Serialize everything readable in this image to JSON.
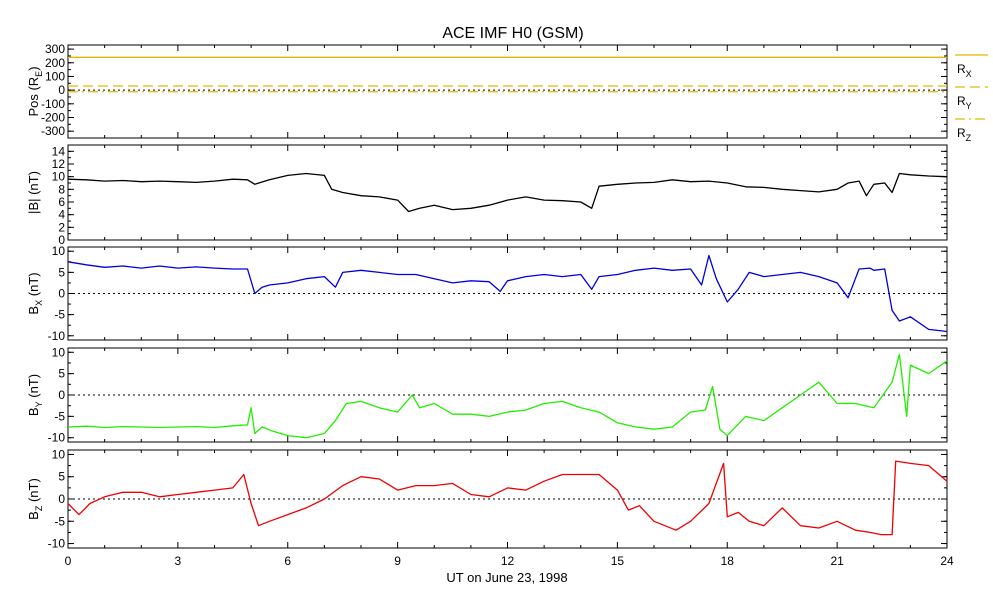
{
  "chart_data": {
    "type": "line",
    "title": "ACE IMF H0 (GSM)",
    "xlabel": "UT on June 23, 1998",
    "xlim": [
      0,
      24
    ],
    "xticks": [
      "0",
      "3",
      "6",
      "9",
      "12",
      "15",
      "18",
      "21",
      "24"
    ],
    "panels": [
      {
        "id": "pos",
        "ylabel": "Pos (R",
        "ylabel_sub": "E",
        "ylabel_end": ")",
        "ylim": [
          -350,
          330
        ],
        "yticks": [
          "300",
          "200",
          "100",
          "0",
          "-100",
          "-200",
          "-300"
        ],
        "color": "#e6b800",
        "series": [
          {
            "name": "R",
            "sub": "X",
            "dash": "solid",
            "value": 240
          },
          {
            "name": "R",
            "sub": "Y",
            "dash": "dashed",
            "value": 30
          },
          {
            "name": "R",
            "sub": "Z",
            "dash": "dashdot",
            "value": -12
          }
        ]
      },
      {
        "id": "b",
        "ylabel": "|B| (nT)",
        "ylim": [
          0,
          15
        ],
        "yticks": [
          "14",
          "12",
          "10",
          "8",
          "6",
          "4",
          "2",
          "0"
        ],
        "color": "#000000",
        "zero_line": false,
        "series": [
          {
            "name": "|B|",
            "x": [
              0,
              0.5,
              1,
              1.5,
              2,
              2.5,
              3,
              3.5,
              4,
              4.5,
              4.9,
              5.1,
              5.5,
              6,
              6.5,
              7,
              7.2,
              7.5,
              8,
              8.5,
              9,
              9.3,
              9.6,
              10,
              10.5,
              11,
              11.5,
              12,
              12.5,
              13,
              13.5,
              14,
              14.3,
              14.5,
              15,
              15.5,
              16,
              16.5,
              17,
              17.5,
              18,
              18.5,
              19,
              19.5,
              20,
              20.5,
              21,
              21.3,
              21.6,
              21.8,
              22,
              22.3,
              22.5,
              22.7,
              23,
              23.5,
              24
            ],
            "y": [
              9.6,
              9.5,
              9.3,
              9.4,
              9.2,
              9.3,
              9.2,
              9.1,
              9.3,
              9.6,
              9.5,
              8.8,
              9.5,
              10.2,
              10.5,
              10.2,
              8,
              7.5,
              7,
              6.8,
              6.3,
              4.5,
              5,
              5.5,
              4.8,
              5,
              5.5,
              6.3,
              6.8,
              6.3,
              6.2,
              6,
              5,
              8.5,
              8.8,
              9,
              9.1,
              9.5,
              9.2,
              9.3,
              9,
              8.4,
              8.3,
              8,
              7.8,
              7.6,
              8,
              9,
              9.3,
              7,
              8.8,
              9,
              7.5,
              10.5,
              10.3,
              10.1,
              10
            ]
          }
        ]
      },
      {
        "id": "bx",
        "ylabel": "B",
        "ylabel_sub": "X",
        "ylabel_end": " (nT)",
        "ylim": [
          -11,
          11
        ],
        "yticks": [
          "10",
          "5",
          "0",
          "-5",
          "-10"
        ],
        "color": "#0000dd",
        "zero_line": true,
        "series": [
          {
            "name": "Bx",
            "x": [
              0,
              0.5,
              1,
              1.5,
              2,
              2.5,
              3,
              3.5,
              4,
              4.5,
              4.9,
              5.1,
              5.3,
              5.5,
              6,
              6.5,
              7,
              7.3,
              7.5,
              8,
              8.5,
              9,
              9.5,
              10,
              10.5,
              11,
              11.5,
              11.8,
              12,
              12.5,
              13,
              13.5,
              14,
              14.3,
              14.5,
              15,
              15.5,
              16,
              16.5,
              17,
              17.3,
              17.5,
              17.7,
              18,
              18.3,
              18.6,
              19,
              19.5,
              20,
              20.5,
              21,
              21.3,
              21.6,
              21.9,
              22,
              22.3,
              22.5,
              22.7,
              23,
              23.5,
              24
            ],
            "y": [
              7.5,
              6.8,
              6.2,
              6.5,
              6,
              6.5,
              6,
              6.3,
              6,
              5.8,
              5.8,
              0,
              1.5,
              2,
              2.5,
              3.5,
              4,
              1.5,
              5,
              5.5,
              5,
              4.5,
              4.5,
              3.5,
              2.5,
              3,
              2.8,
              0.5,
              3,
              4,
              4.5,
              4,
              4.5,
              1,
              4,
              4.5,
              5.5,
              6,
              5.5,
              5.8,
              2,
              9,
              3.5,
              -2,
              1,
              5,
              4,
              4.5,
              5,
              4,
              2.5,
              -1,
              5.8,
              6,
              5.5,
              5.8,
              -4,
              -6.5,
              -5.5,
              -8.5,
              -9
            ]
          }
        ]
      },
      {
        "id": "by",
        "ylabel": "B",
        "ylabel_sub": "Y",
        "ylabel_end": " (nT)",
        "ylim": [
          -11,
          11
        ],
        "yticks": [
          "10",
          "5",
          "0",
          "-5",
          "-10"
        ],
        "color": "#22ee00",
        "zero_line": true,
        "series": [
          {
            "name": "By",
            "x": [
              0,
              0.5,
              1,
              1.5,
              2,
              2.5,
              3,
              3.5,
              4,
              4.5,
              4.9,
              5,
              5.1,
              5.3,
              5.6,
              6,
              6.5,
              7,
              7.3,
              7.6,
              8,
              8.5,
              9,
              9.4,
              9.6,
              10,
              10.5,
              11,
              11.5,
              12,
              12.5,
              13,
              13.5,
              14,
              14.5,
              15,
              15.5,
              16,
              16.5,
              17,
              17.4,
              17.6,
              17.8,
              18,
              18.5,
              19,
              19.5,
              20,
              20.5,
              21,
              21.5,
              22,
              22.5,
              22.7,
              22.9,
              23,
              23.5,
              24
            ],
            "y": [
              -7.5,
              -7.3,
              -7.6,
              -7.4,
              -7.5,
              -7.6,
              -7.5,
              -7.4,
              -7.6,
              -7.2,
              -7,
              -3,
              -9,
              -7.5,
              -8.5,
              -9.5,
              -10,
              -9,
              -6,
              -2,
              -1.5,
              -3,
              -4,
              0,
              -3,
              -2,
              -4.5,
              -4.5,
              -5,
              -4,
              -3.5,
              -2,
              -1.5,
              -3,
              -4,
              -6.5,
              -7.5,
              -8,
              -7.5,
              -4,
              -3.5,
              2,
              -8,
              -9.5,
              -5,
              -6,
              -3,
              0,
              3,
              -2,
              -2,
              -3,
              3,
              9.5,
              -5,
              7,
              5,
              8
            ]
          }
        ]
      },
      {
        "id": "bz",
        "ylabel": "B",
        "ylabel_sub": "Z",
        "ylabel_end": " (nT)",
        "ylim": [
          -11,
          11
        ],
        "yticks": [
          "10",
          "5",
          "0",
          "-5",
          "-10"
        ],
        "color": "#ee0000",
        "zero_line": true,
        "series": [
          {
            "name": "Bz",
            "x": [
              0,
              0.3,
              0.6,
              1,
              1.5,
              2,
              2.5,
              3,
              3.5,
              4,
              4.5,
              4.8,
              5,
              5.2,
              5.5,
              6,
              6.5,
              7,
              7.5,
              8,
              8.5,
              9,
              9.5,
              10,
              10.5,
              11,
              11.5,
              12,
              12.5,
              13,
              13.5,
              14,
              14.5,
              15,
              15.3,
              15.6,
              16,
              16.3,
              16.6,
              17,
              17.5,
              17.9,
              18,
              18.3,
              18.6,
              19,
              19.5,
              20,
              20.5,
              21,
              21.5,
              21.9,
              22.2,
              22.5,
              22.6,
              23,
              23.5,
              24
            ],
            "y": [
              -1,
              -3.5,
              -1,
              0.5,
              1.5,
              1.5,
              0.5,
              1,
              1.5,
              2,
              2.5,
              5.5,
              -1,
              -6,
              -5,
              -3.5,
              -2,
              0,
              3,
              5,
              4.5,
              2,
              3,
              3,
              3.5,
              1,
              0.5,
              2.5,
              2,
              4,
              5.5,
              5.5,
              5.5,
              2,
              -2.5,
              -1.5,
              -5,
              -6,
              -7,
              -5,
              -1,
              8,
              -4,
              -3,
              -5,
              -6,
              -2,
              -6,
              -6.5,
              -5,
              -7,
              -7.5,
              -8,
              -8,
              8.5,
              8,
              7.5,
              4
            ]
          }
        ]
      }
    ]
  }
}
